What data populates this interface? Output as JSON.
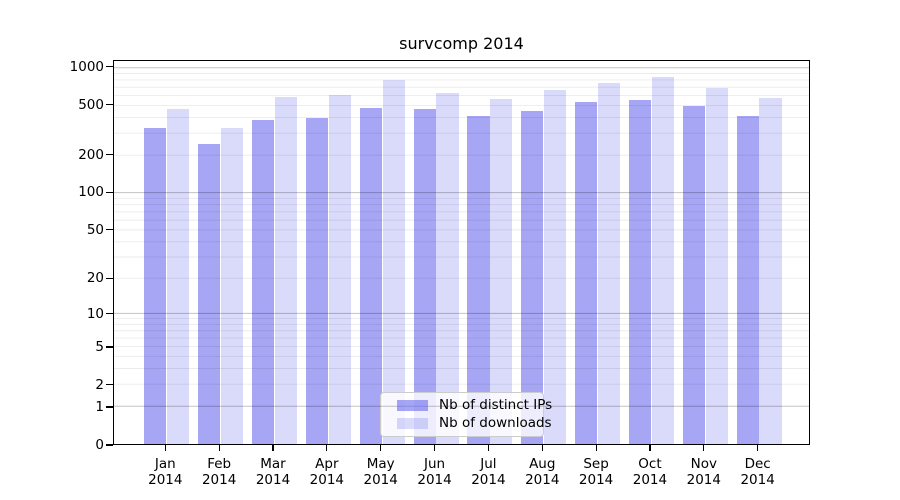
{
  "chart_data": {
    "type": "bar",
    "title": "survcomp 2014",
    "categories": [
      "Jan 2014",
      "Feb 2014",
      "Mar 2014",
      "Apr 2014",
      "May 2014",
      "Jun 2014",
      "Jul 2014",
      "Aug 2014",
      "Sep 2014",
      "Oct 2014",
      "Nov 2014",
      "Dec 2014"
    ],
    "series": [
      {
        "name": "Nb of distinct IPs",
        "color": "rgba(102,102,238,0.58)",
        "values": [
          318,
          240,
          368,
          385,
          466,
          455,
          400,
          436,
          514,
          536,
          481,
          400
        ]
      },
      {
        "name": "Nb of downloads",
        "color": "rgba(102,102,238,0.24)",
        "values": [
          455,
          322,
          564,
          581,
          774,
          607,
          546,
          644,
          732,
          817,
          672,
          555
        ]
      }
    ],
    "xlabel": "",
    "ylabel": "",
    "y_scale": "log1p",
    "y_ticks": [
      0,
      1,
      2,
      5,
      10,
      20,
      50,
      100,
      200,
      500,
      1000
    ],
    "ylim": [
      0,
      1140
    ],
    "grid": true,
    "legend_position": "lower center",
    "colors": {
      "bar_base": "#6666ee",
      "grid_major": "rgba(0,0,0,0.24)",
      "grid_minor": "rgba(0,0,0,0.08)",
      "spine": "#000000",
      "legend_border": "#cccccc",
      "legend_bg": "rgba(255,255,255,0.8)",
      "text": "#000000"
    }
  }
}
